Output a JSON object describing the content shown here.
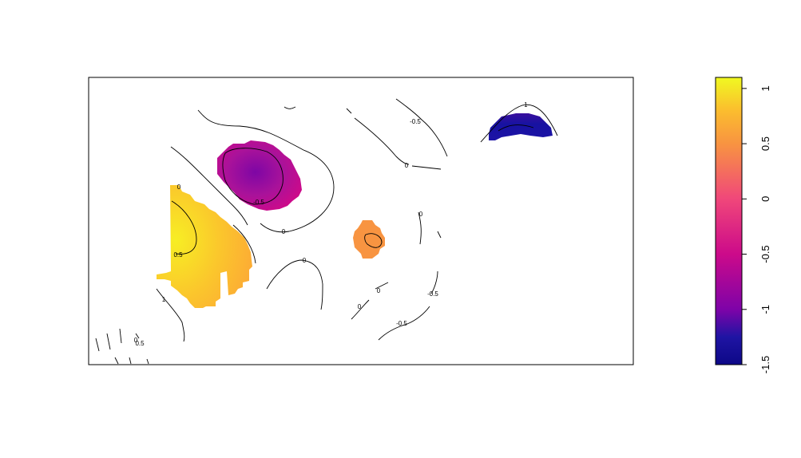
{
  "chart_data": {
    "type": "heatmap",
    "title": "",
    "xlabel": "",
    "ylabel": "",
    "axes_shown": false,
    "colorscale": {
      "name": "plasma",
      "range": [
        -1.5,
        1.1
      ],
      "stops": [
        {
          "value": -1.5,
          "color": "#0d0887"
        },
        {
          "value": -1.25,
          "color": "#1f14a3"
        },
        {
          "value": -1.0,
          "color": "#7e03a8"
        },
        {
          "value": -0.5,
          "color": "#cc0a8a"
        },
        {
          "value": 0.0,
          "color": "#f0477a"
        },
        {
          "value": 0.5,
          "color": "#f89441"
        },
        {
          "value": 0.8,
          "color": "#fbbd2e"
        },
        {
          "value": 1.1,
          "color": "#f0f921"
        }
      ],
      "tick_labels": [
        "-1.5",
        "-1",
        "-0.5",
        "0",
        "0.5",
        "1"
      ],
      "tick_values": [
        -1.5,
        -1,
        -0.5,
        0,
        0.5,
        1
      ]
    },
    "regions": [
      {
        "id": "orange-left",
        "approx_value": 0.85,
        "peak": 1.1
      },
      {
        "id": "magenta-blob",
        "approx_value": -0.7,
        "min": -0.95
      },
      {
        "id": "orange-small",
        "approx_value": 0.45
      },
      {
        "id": "blue-top-right",
        "approx_value": -1.4
      }
    ],
    "contour_labels": [
      {
        "text": "-1",
        "level": -1
      },
      {
        "text": "-0.5",
        "level": -0.5
      },
      {
        "text": "0",
        "level": 0
      },
      {
        "text": "-0.5",
        "level": -0.5
      },
      {
        "text": "0",
        "level": 0
      },
      {
        "text": "0.5",
        "level": 0.5
      },
      {
        "text": "1",
        "level": 1
      },
      {
        "text": "0",
        "level": 0
      },
      {
        "text": "0.5",
        "level": 0.5
      },
      {
        "text": "0",
        "level": 0
      },
      {
        "text": "0",
        "level": 0
      },
      {
        "text": "0",
        "level": 0
      },
      {
        "text": "-0.5",
        "level": -0.5
      },
      {
        "text": "0",
        "level": 0
      },
      {
        "text": "-0.5",
        "level": -0.5
      },
      {
        "text": "0",
        "level": 0
      }
    ]
  },
  "colors": {
    "frame": "#000000",
    "contour": "#000000",
    "background": "#ffffff"
  }
}
